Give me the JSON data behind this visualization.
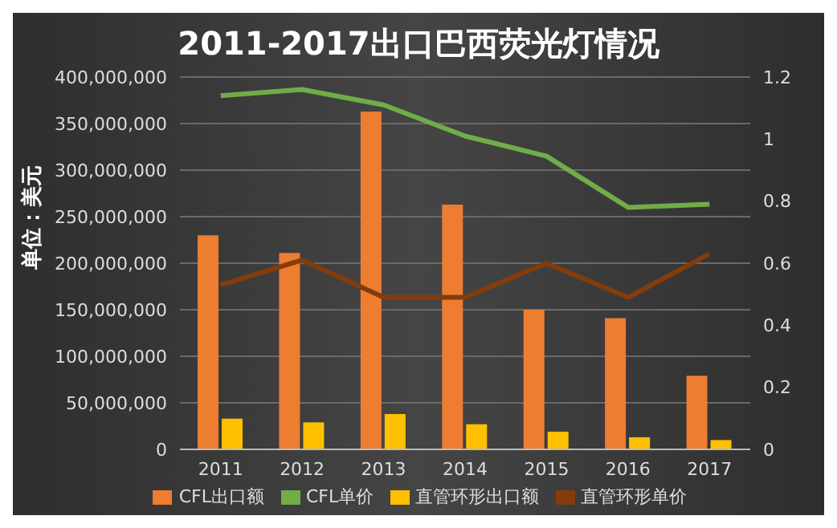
{
  "chart_data": {
    "type": "bar",
    "title": "2011-2017出口巴西荧光灯情况",
    "ylabel": "单位：美元",
    "categories": [
      "2011",
      "2012",
      "2013",
      "2014",
      "2015",
      "2016",
      "2017"
    ],
    "series": [
      {
        "name": "CFL出口额",
        "color": "#ed7d31",
        "values": [
          230000000,
          211000000,
          363000000,
          263000000,
          150000000,
          141000000,
          79000000
        ]
      },
      {
        "name": "直管环形出口额",
        "color": "#ffc000",
        "values": [
          33000000,
          29000000,
          38000000,
          27000000,
          19000000,
          13000000,
          10000000
        ]
      },
      {
        "name": "CFL单价",
        "type": "line",
        "axis": "y2",
        "color": "#70ad47",
        "values": [
          1.14,
          1.16,
          1.11,
          1.01,
          0.945,
          0.78,
          0.79
        ]
      },
      {
        "name": "直管环形单价",
        "type": "line",
        "axis": "y2",
        "color": "#843c0c",
        "values": [
          0.53,
          0.61,
          0.49,
          0.49,
          0.6,
          0.49,
          0.63
        ]
      }
    ],
    "ylim": [
      0,
      400000000
    ],
    "yticks": [
      {
        "value": 0,
        "label": "0"
      },
      {
        "value": 50000000,
        "label": "50,000,000"
      },
      {
        "value": 100000000,
        "label": "100,000,000"
      },
      {
        "value": 150000000,
        "label": "150,000,000"
      },
      {
        "value": 200000000,
        "label": "200,000,000"
      },
      {
        "value": 250000000,
        "label": "250,000,000"
      },
      {
        "value": 300000000,
        "label": "300,000,000"
      },
      {
        "value": 350000000,
        "label": "350,000,000"
      },
      {
        "value": 400000000,
        "label": "400,000,000"
      }
    ],
    "y2lim": [
      0,
      1.2
    ],
    "y2ticks": [
      0,
      0.2,
      0.4,
      0.6,
      0.8,
      1,
      1.2
    ],
    "grid": "y",
    "legend": "bottom",
    "marker": "none"
  }
}
